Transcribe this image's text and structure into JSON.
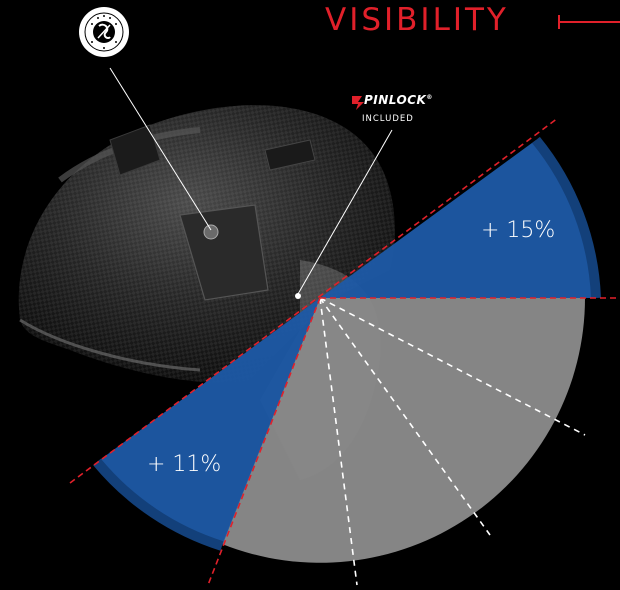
{
  "title": "VISIBILITY",
  "pinlock": {
    "brand": "PINLOCK",
    "mark": "®",
    "note": "INCLUDED"
  },
  "badge": {
    "name": "quick release system emblem"
  },
  "gains": {
    "upper": "+ 15%",
    "lower": "+ 11%"
  },
  "colors": {
    "background": "#000000",
    "accent_red": "#e1202a",
    "gain_blue": "#1d5aa6",
    "field_gray": "#8c8c8c",
    "line_white": "#ffffff"
  }
}
